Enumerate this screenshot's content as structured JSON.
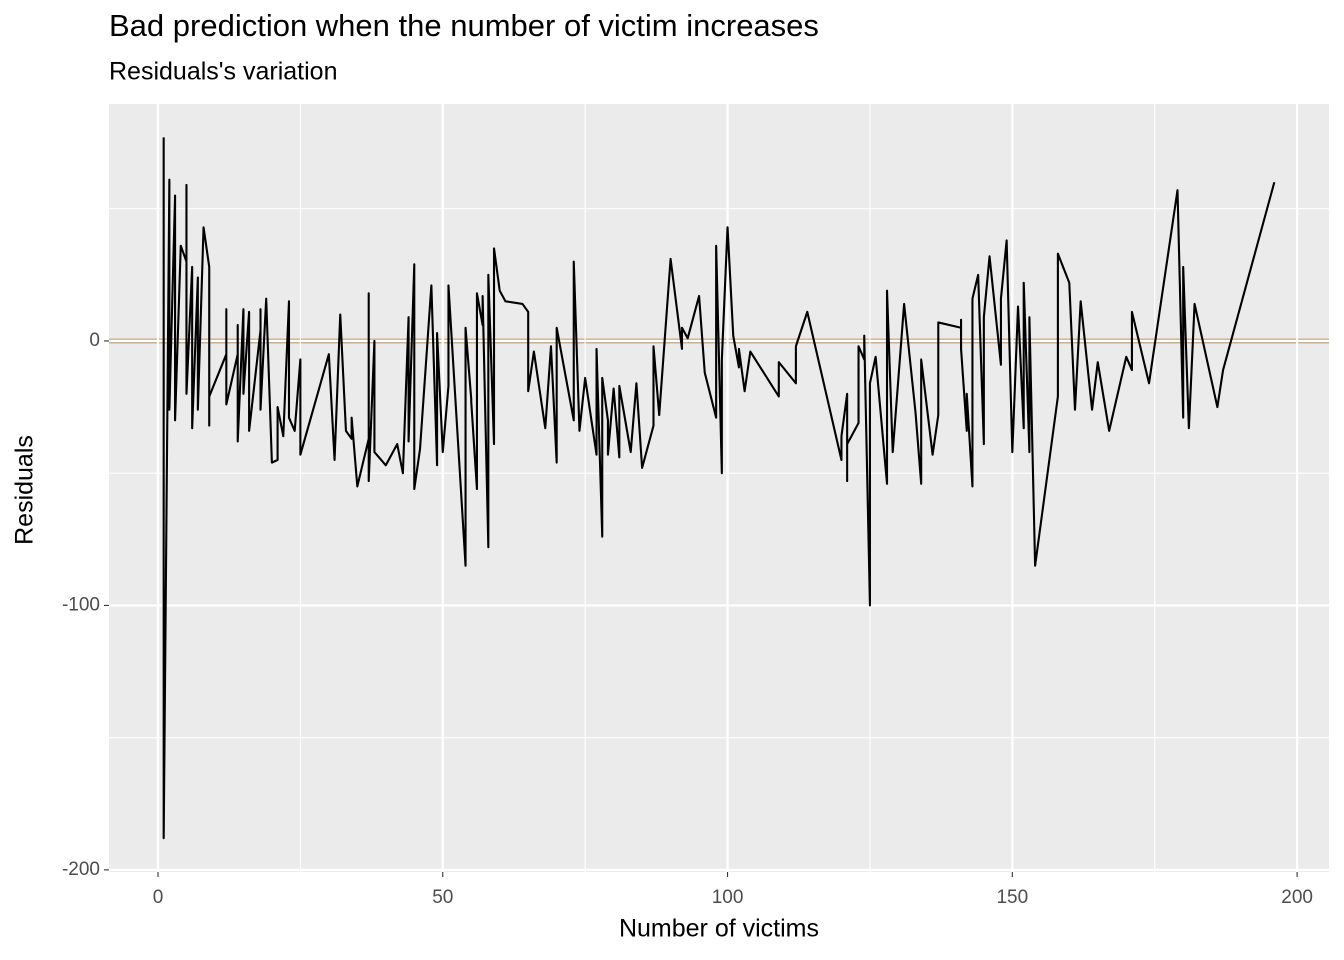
{
  "chart_data": {
    "type": "line",
    "title": "Bad prediction when the number of victim increases",
    "subtitle": "Residuals's variation",
    "x_label": "Number of victims",
    "y_label": "Residuals",
    "xlim": [
      -8.6,
      205.6
    ],
    "ylim": [
      -200.8,
      89.6
    ],
    "xticks": [
      0,
      50,
      100,
      150,
      200
    ],
    "yticks": [
      -200,
      -100,
      0
    ],
    "grid": true,
    "hline": {
      "value": 0,
      "color": "#c8b08f"
    },
    "series": [
      {
        "color": "#000000",
        "x": [
          1,
          1,
          2,
          2,
          3,
          3,
          4,
          5,
          5,
          5,
          6,
          6,
          7,
          7,
          8,
          9,
          9,
          9,
          9,
          12,
          12,
          12,
          14,
          14,
          14,
          15,
          15,
          16,
          16,
          18,
          18,
          18,
          19,
          20,
          21,
          21,
          22,
          23,
          23,
          24,
          25,
          25,
          30,
          31,
          32,
          33,
          34,
          34,
          35,
          37,
          37,
          37,
          38,
          38,
          40,
          42,
          43,
          44,
          44,
          45,
          45,
          46,
          48,
          49,
          49,
          50,
          51,
          51,
          54,
          54,
          55,
          55,
          56,
          56,
          57,
          57,
          58,
          58,
          59,
          59,
          60,
          61,
          64,
          65,
          65,
          66,
          68,
          69,
          70,
          70,
          73,
          73,
          74,
          75,
          77,
          77,
          78,
          78,
          79,
          79,
          80,
          81,
          81,
          83,
          84,
          85,
          87,
          87,
          88,
          90,
          92,
          92,
          93,
          95,
          96,
          98,
          98,
          99,
          99,
          100,
          101,
          102,
          102,
          103,
          104,
          109,
          109,
          112,
          112,
          114,
          120,
          120,
          121,
          121,
          121,
          123,
          123,
          124,
          124,
          125,
          125,
          126,
          128,
          128,
          129,
          131,
          133,
          134,
          134,
          136,
          137,
          137,
          141,
          141,
          141,
          142,
          142,
          143,
          143,
          144,
          145,
          145,
          146,
          148,
          148,
          149,
          150,
          151,
          152,
          152,
          153,
          153,
          154,
          158,
          158,
          160,
          161,
          162,
          164,
          165,
          167,
          170,
          171,
          171,
          174,
          179,
          180,
          180,
          181,
          182,
          186,
          187,
          196
        ],
        "values": [
          77,
          -188,
          61,
          -26,
          55,
          -30,
          36,
          30,
          59,
          -20,
          28,
          -33,
          24,
          -26,
          43,
          28,
          -32,
          28,
          -21,
          -5,
          12,
          -24,
          -5,
          6,
          -38,
          12,
          -20,
          11,
          -34,
          4,
          12,
          -26,
          16,
          -46,
          -45,
          -25,
          -36,
          15,
          -29,
          -34,
          -7,
          -43,
          -5,
          -45,
          10,
          -34,
          -37,
          -29,
          -55,
          -37,
          18,
          -53,
          0,
          -42,
          -47,
          -39,
          -50,
          9,
          -38,
          29,
          -56,
          -41,
          21,
          -47,
          3,
          -42,
          -17,
          21,
          -85,
          5,
          -22,
          -23,
          -56,
          18,
          6,
          17,
          -78,
          25,
          -39,
          35,
          19,
          15,
          14,
          11,
          -19,
          -4,
          -33,
          -2,
          -46,
          5,
          -30,
          30,
          -34,
          -14,
          -43,
          -3,
          -74,
          -14,
          -30,
          -43,
          -18,
          -44,
          -17,
          -42,
          -16,
          -48,
          -32,
          -2,
          -28,
          31,
          -3,
          5,
          1,
          17,
          -12,
          -29,
          36,
          -50,
          -7,
          43,
          2,
          -10,
          -3,
          -19,
          -4,
          -21,
          -8,
          -16,
          -2,
          11,
          -45,
          -36,
          -20,
          -53,
          -39,
          -31,
          -2,
          -7,
          2,
          -100,
          -16,
          -6,
          -54,
          19,
          -42,
          14,
          -27,
          -54,
          -7,
          -43,
          -28,
          7,
          5,
          8,
          -3,
          -34,
          -20,
          -55,
          16,
          25,
          -39,
          9,
          32,
          -9,
          16,
          38,
          -42,
          13,
          -33,
          22,
          -42,
          9,
          -85,
          -21,
          33,
          22,
          -26,
          15,
          -26,
          -8,
          -34,
          -6,
          -11,
          11,
          -16,
          57,
          -29,
          28,
          -33,
          14,
          -25,
          -11,
          60
        ]
      }
    ]
  }
}
